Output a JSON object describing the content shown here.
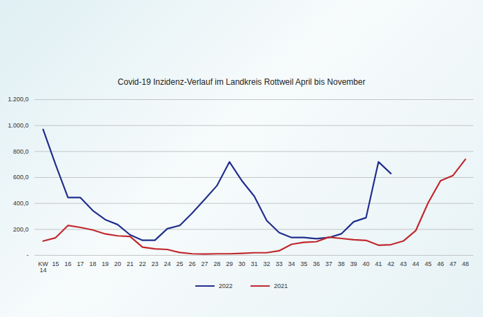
{
  "chart_data": {
    "type": "line",
    "title": "Covid-19 Inzidenz-Verlauf im Landkreis Rottweil April bis November",
    "categories": [
      "KW 14",
      "15",
      "16",
      "17",
      "18",
      "19",
      "20",
      "21",
      "22",
      "23",
      "24",
      "25",
      "26",
      "27",
      "28",
      "29",
      "30",
      "31",
      "32",
      "33",
      "34",
      "35",
      "36",
      "37",
      "38",
      "39",
      "40",
      "41",
      "42",
      "43",
      "44",
      "45",
      "46",
      "47",
      "48"
    ],
    "series": [
      {
        "name": "2022",
        "color": "#1f2e8c",
        "values": [
          970,
          700,
          445,
          445,
          345,
          275,
          237,
          158,
          116,
          116,
          205,
          230,
          325,
          430,
          537,
          720,
          575,
          455,
          268,
          175,
          137,
          137,
          128,
          137,
          165,
          258,
          290,
          720,
          630,
          null,
          null,
          null,
          null,
          null,
          null
        ]
      },
      {
        "name": "2021",
        "color": "#c1272d",
        "values": [
          110,
          135,
          230,
          215,
          195,
          165,
          150,
          145,
          63,
          50,
          45,
          22,
          12,
          10,
          12,
          12,
          15,
          20,
          20,
          35,
          85,
          100,
          105,
          140,
          130,
          120,
          115,
          78,
          82,
          110,
          190,
          405,
          575,
          615,
          740
        ]
      }
    ],
    "ylim": [
      0,
      1200
    ],
    "yticks": [
      {
        "value": 0,
        "label": "-"
      },
      {
        "value": 200,
        "label": "200,0"
      },
      {
        "value": 400,
        "label": "400,0"
      },
      {
        "value": 600,
        "label": "600,0"
      },
      {
        "value": 800,
        "label": "800,0"
      },
      {
        "value": 1000,
        "label": "1.000,0"
      },
      {
        "value": 1200,
        "label": "1.200,0"
      }
    ],
    "grid": true,
    "legend": "bottom"
  }
}
